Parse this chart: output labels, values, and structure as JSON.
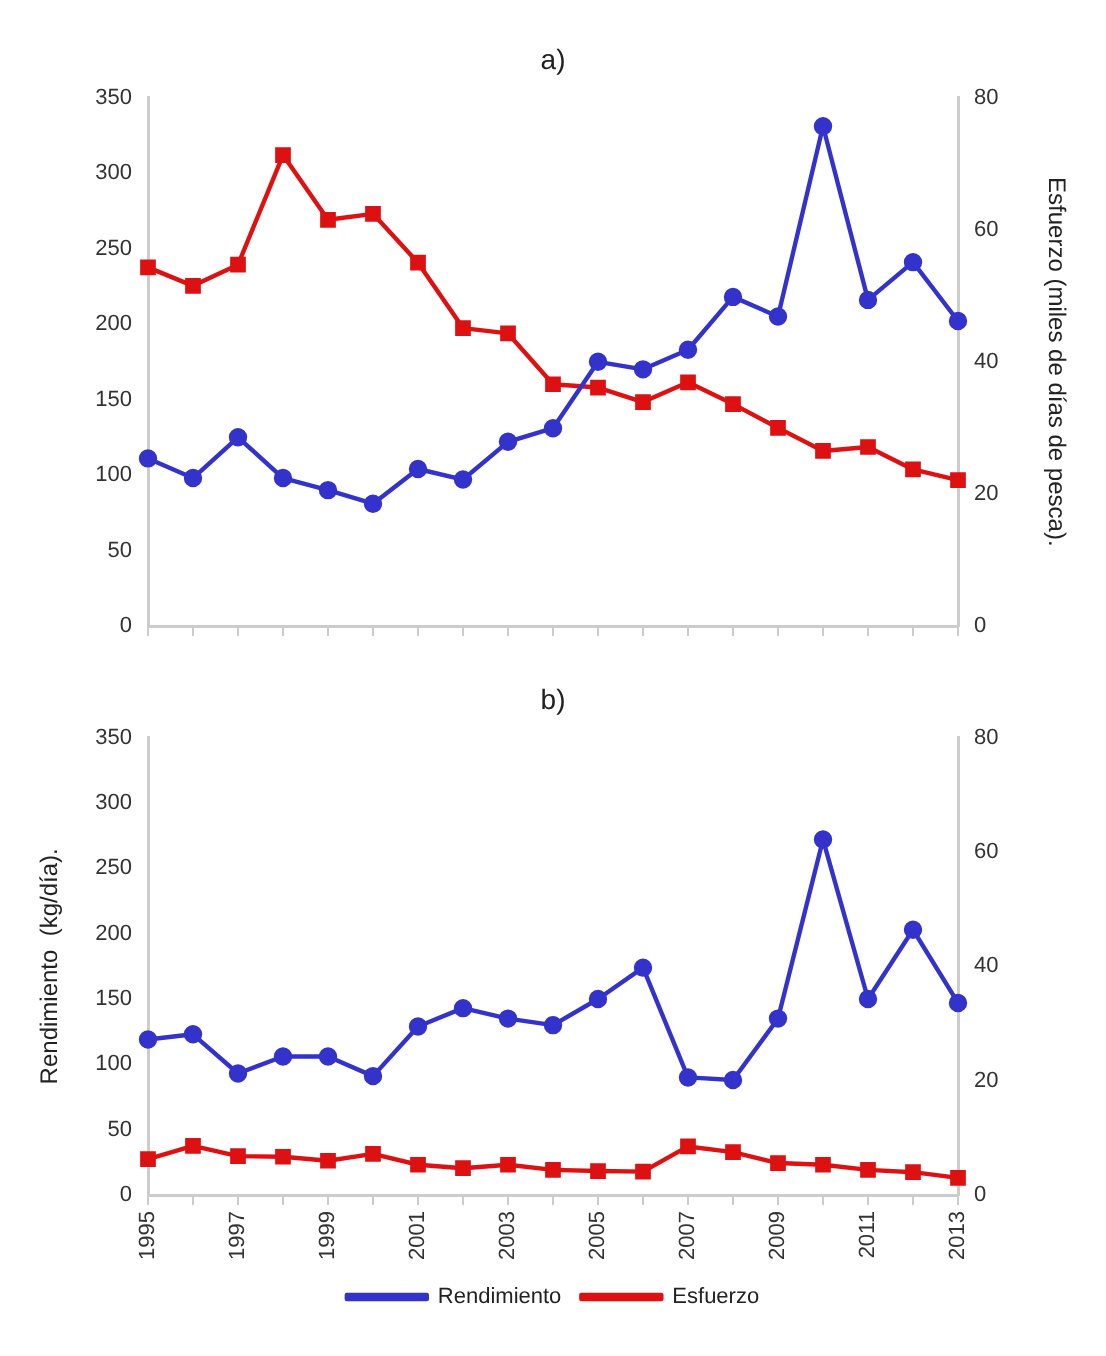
{
  "chart_data": [
    {
      "type": "line",
      "title": "a)",
      "y2label": "Esfuerzo (miles de días de pesca).",
      "categories": [
        "1995",
        null,
        "1997",
        null,
        "1999",
        null,
        "2001",
        null,
        "2003",
        null,
        "2005",
        null,
        "2007",
        null,
        "2009",
        null,
        "2011",
        null,
        "2013"
      ],
      "series": [
        {
          "color": "#3333cc",
          "marker": "circle",
          "values": [
            111,
            98,
            125,
            98,
            90,
            81,
            104,
            97,
            122,
            131,
            175,
            170,
            183,
            218,
            205,
            331,
            216,
            241,
            202
          ]
        },
        {
          "color": "#dd1111",
          "marker": "square",
          "axis": "y2",
          "values": [
            54.3,
            51.5,
            54.7,
            71.3,
            61.5,
            62.4,
            55,
            45.1,
            44.3,
            36.6,
            36.1,
            33.9,
            36.9,
            33.6,
            30,
            26.5,
            27.1,
            23.7,
            22.1
          ]
        }
      ],
      "ylim": [
        0,
        350
      ],
      "yticks": [
        0,
        50,
        100,
        150,
        200,
        250,
        300,
        350
      ],
      "y2lim": [
        0,
        80
      ],
      "y2ticks": [
        0,
        20,
        40,
        60,
        80
      ],
      "tick_labels": "y",
      "grid": false,
      "legend": false,
      "line_style": "solid"
    },
    {
      "type": "line",
      "title": "b)",
      "ylabel": "Rendimiento  (kg/día).",
      "categories": [
        "1995",
        null,
        "1997",
        null,
        "1999",
        null,
        "2001",
        null,
        "2003",
        null,
        "2005",
        null,
        "2007",
        null,
        "2009",
        null,
        "2011",
        null,
        "2013"
      ],
      "series": [
        {
          "name": "Rendimiento",
          "color": "#3333cc",
          "marker": "circle",
          "values": [
            119,
            123,
            93,
            106,
            106,
            91,
            129,
            143,
            135,
            130,
            150,
            174,
            90,
            88,
            135,
            272,
            150,
            203,
            147
          ]
        },
        {
          "name": "Esfuerzo",
          "color": "#dd1111",
          "marker": "square",
          "axis": "y2",
          "values": [
            6.3,
            8.6,
            6.8,
            6.7,
            6,
            7.2,
            5.3,
            4.7,
            5.3,
            4.4,
            4.2,
            4.1,
            8.5,
            7.5,
            5.6,
            5.3,
            4.4,
            4,
            3
          ]
        }
      ],
      "ylim": [
        0,
        350
      ],
      "yticks": [
        0,
        50,
        100,
        150,
        200,
        250,
        300,
        350
      ],
      "y2lim": [
        0,
        80
      ],
      "y2ticks": [
        0,
        20,
        40,
        60,
        80
      ],
      "grid": false,
      "legend": "bottom",
      "line_style": "solid"
    }
  ]
}
